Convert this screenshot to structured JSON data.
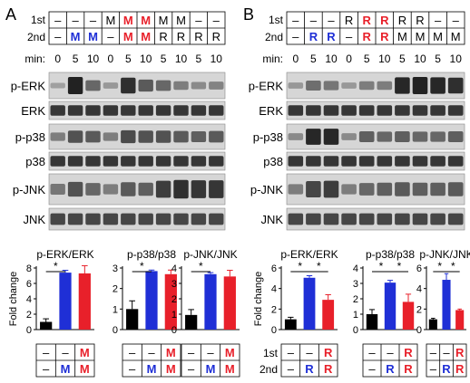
{
  "colors": {
    "black": "#000000",
    "blue": "#1f2fd6",
    "red": "#e8202a",
    "band": "#1a1a1a",
    "blot_bg": "#d6d6d6"
  },
  "panels": [
    {
      "letter": "A",
      "first_label": "1st",
      "second_label": "2nd",
      "min_label": "min:",
      "first": [
        {
          "t": "–",
          "c": "black"
        },
        {
          "t": "–",
          "c": "black"
        },
        {
          "t": "–",
          "c": "black"
        },
        {
          "t": "M",
          "c": "black"
        },
        {
          "t": "M",
          "c": "red"
        },
        {
          "t": "M",
          "c": "red"
        },
        {
          "t": "M",
          "c": "black"
        },
        {
          "t": "M",
          "c": "black"
        },
        {
          "t": "–",
          "c": "black"
        },
        {
          "t": "–",
          "c": "black"
        }
      ],
      "second": [
        {
          "t": "–",
          "c": "black"
        },
        {
          "t": "M",
          "c": "blue"
        },
        {
          "t": "M",
          "c": "blue"
        },
        {
          "t": "–",
          "c": "black"
        },
        {
          "t": "M",
          "c": "red"
        },
        {
          "t": "M",
          "c": "red"
        },
        {
          "t": "R",
          "c": "black"
        },
        {
          "t": "R",
          "c": "black"
        },
        {
          "t": "R",
          "c": "black"
        },
        {
          "t": "R",
          "c": "black"
        }
      ],
      "min": [
        "0",
        "5",
        "10",
        "0",
        "5",
        "10",
        "5",
        "10",
        "5",
        "10"
      ],
      "blots": [
        {
          "label": "p-ERK",
          "levels": [
            0.05,
            0.95,
            0.45,
            0.1,
            0.85,
            0.55,
            0.45,
            0.3,
            0.2,
            0.25
          ]
        },
        {
          "label": "ERK",
          "levels": [
            0.8,
            0.8,
            0.8,
            0.8,
            0.8,
            0.8,
            0.8,
            0.8,
            0.8,
            0.8
          ]
        },
        {
          "label": "p-p38",
          "levels": [
            0.3,
            0.6,
            0.55,
            0.3,
            0.65,
            0.6,
            0.6,
            0.55,
            0.5,
            0.55
          ]
        },
        {
          "label": "p38",
          "levels": [
            0.8,
            0.8,
            0.8,
            0.8,
            0.8,
            0.8,
            0.8,
            0.8,
            0.8,
            0.8
          ]
        },
        {
          "label": "p-JNK",
          "levels": [
            0.35,
            0.6,
            0.45,
            0.3,
            0.55,
            0.5,
            0.75,
            0.85,
            0.8,
            0.8
          ]
        },
        {
          "label": "JNK",
          "levels": [
            0.7,
            0.7,
            0.7,
            0.7,
            0.7,
            0.7,
            0.7,
            0.7,
            0.7,
            0.7
          ]
        }
      ]
    },
    {
      "letter": "B",
      "first_label": "1st",
      "second_label": "2nd",
      "min_label": "min:",
      "first": [
        {
          "t": "–",
          "c": "black"
        },
        {
          "t": "–",
          "c": "black"
        },
        {
          "t": "–",
          "c": "black"
        },
        {
          "t": "R",
          "c": "black"
        },
        {
          "t": "R",
          "c": "red"
        },
        {
          "t": "R",
          "c": "red"
        },
        {
          "t": "R",
          "c": "black"
        },
        {
          "t": "R",
          "c": "black"
        },
        {
          "t": "–",
          "c": "black"
        },
        {
          "t": "–",
          "c": "black"
        }
      ],
      "second": [
        {
          "t": "–",
          "c": "black"
        },
        {
          "t": "R",
          "c": "blue"
        },
        {
          "t": "R",
          "c": "blue"
        },
        {
          "t": "–",
          "c": "black"
        },
        {
          "t": "R",
          "c": "red"
        },
        {
          "t": "R",
          "c": "red"
        },
        {
          "t": "M",
          "c": "black"
        },
        {
          "t": "M",
          "c": "black"
        },
        {
          "t": "M",
          "c": "black"
        },
        {
          "t": "M",
          "c": "black"
        }
      ],
      "min": [
        "0",
        "5",
        "10",
        "0",
        "5",
        "10",
        "5",
        "10",
        "5",
        "10"
      ],
      "blots": [
        {
          "label": "p-ERK",
          "levels": [
            0.1,
            0.4,
            0.35,
            0.1,
            0.3,
            0.3,
            0.9,
            0.95,
            0.9,
            0.85
          ]
        },
        {
          "label": "ERK",
          "levels": [
            0.8,
            0.8,
            0.8,
            0.8,
            0.8,
            0.8,
            0.8,
            0.8,
            0.8,
            0.8
          ]
        },
        {
          "label": "p-p38",
          "levels": [
            0.2,
            0.9,
            0.9,
            0.2,
            0.5,
            0.45,
            0.5,
            0.45,
            0.45,
            0.5
          ]
        },
        {
          "label": "p38",
          "levels": [
            0.8,
            0.8,
            0.8,
            0.8,
            0.8,
            0.8,
            0.8,
            0.8,
            0.8,
            0.8
          ]
        },
        {
          "label": "p-JNK",
          "levels": [
            0.3,
            0.7,
            0.75,
            0.3,
            0.45,
            0.5,
            0.55,
            0.5,
            0.5,
            0.55
          ]
        },
        {
          "label": "JNK",
          "levels": [
            0.7,
            0.7,
            0.7,
            0.7,
            0.7,
            0.7,
            0.7,
            0.7,
            0.7,
            0.7
          ]
        }
      ]
    }
  ],
  "chart_data": [
    {
      "type": "bar",
      "title": "p-ERK/ERK",
      "ylabel": "Fold change",
      "ylim": [
        0,
        8
      ],
      "yticks": [
        0,
        2,
        4,
        6,
        8
      ],
      "values": [
        1.0,
        7.4,
        7.3
      ],
      "errors": [
        0.4,
        0.3,
        1.0
      ],
      "sig": [
        "*"
      ]
    },
    {
      "type": "bar",
      "title": "p-p38/p38",
      "ylabel": "",
      "ylim": [
        0,
        3
      ],
      "yticks": [
        0,
        1,
        2,
        3
      ],
      "values": [
        1.0,
        2.85,
        2.7
      ],
      "errors": [
        0.4,
        0.05,
        0.2
      ],
      "sig": [
        "*"
      ]
    },
    {
      "type": "bar",
      "title": "p-JNK/JNK",
      "ylabel": "",
      "ylim": [
        0,
        4
      ],
      "yticks": [
        0,
        1,
        2,
        3,
        4
      ],
      "values": [
        0.95,
        3.6,
        3.45
      ],
      "errors": [
        0.35,
        0.1,
        0.4
      ],
      "sig": [
        "*"
      ]
    },
    {
      "type": "bar",
      "title": "p-ERK/ERK",
      "ylabel": "Fold change",
      "ylim": [
        0,
        6
      ],
      "yticks": [
        0,
        2,
        4,
        6
      ],
      "values": [
        1.0,
        5.05,
        2.9
      ],
      "errors": [
        0.2,
        0.2,
        0.5
      ],
      "sig": [
        "*",
        "*"
      ]
    },
    {
      "type": "bar",
      "title": "p-p38/p38",
      "ylabel": "",
      "ylim": [
        0,
        4
      ],
      "yticks": [
        0,
        1,
        2,
        3,
        4
      ],
      "values": [
        1.0,
        3.05,
        1.8
      ],
      "errors": [
        0.3,
        0.15,
        0.5
      ],
      "sig": [
        "*",
        "*"
      ]
    },
    {
      "type": "bar",
      "title": "p-JNK/JNK",
      "ylabel": "",
      "ylim": [
        0,
        6
      ],
      "yticks": [
        0,
        2,
        4,
        6
      ],
      "values": [
        1.0,
        4.85,
        1.9
      ],
      "errors": [
        0.1,
        0.6,
        0.1
      ],
      "sig": [
        "*",
        "*"
      ]
    }
  ],
  "chart_legends": [
    {
      "first": [
        {
          "t": "–",
          "c": "black"
        },
        {
          "t": "–",
          "c": "black"
        },
        {
          "t": "M",
          "c": "red"
        }
      ],
      "second": [
        {
          "t": "–",
          "c": "black"
        },
        {
          "t": "M",
          "c": "blue"
        },
        {
          "t": "M",
          "c": "red"
        }
      ]
    },
    {
      "first_label": "1st",
      "second_label": "2nd",
      "first": [
        {
          "t": "–",
          "c": "black"
        },
        {
          "t": "–",
          "c": "black"
        },
        {
          "t": "R",
          "c": "red"
        }
      ],
      "second": [
        {
          "t": "–",
          "c": "black"
        },
        {
          "t": "R",
          "c": "blue"
        },
        {
          "t": "R",
          "c": "red"
        }
      ]
    }
  ]
}
